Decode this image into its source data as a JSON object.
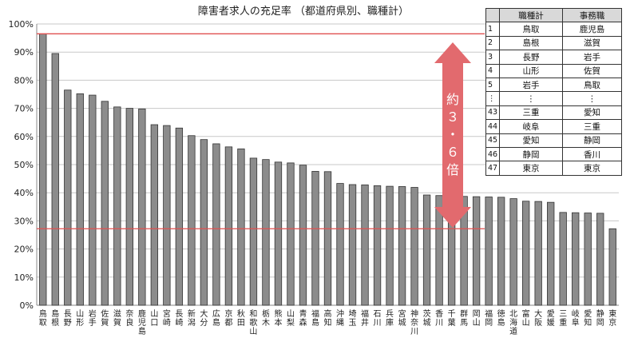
{
  "chart_data": {
    "type": "bar",
    "title": "障害者求人の充足率 （都道府県別、職種計）",
    "ylim": [
      0,
      100
    ],
    "y_ticks": [
      "0%",
      "10%",
      "20%",
      "30%",
      "40%",
      "50%",
      "60%",
      "70%",
      "80%",
      "90%",
      "100%"
    ],
    "grid": true,
    "categories": [
      "鳥取",
      "島根",
      "長野",
      "山形",
      "岩手",
      "佐賀",
      "滋賀",
      "奈良",
      "鹿児島",
      "山口",
      "宮崎",
      "長崎",
      "新潟",
      "大分",
      "広島",
      "京都",
      "秋田",
      "和歌山",
      "栃木",
      "熊本",
      "山梨",
      "青森",
      "福島",
      "高知",
      "沖縄",
      "埼玉",
      "福井",
      "石川",
      "兵庫",
      "宮城",
      "神奈川",
      "茨城",
      "香川",
      "千葉",
      "群馬",
      "岡山",
      "福岡",
      "徳島",
      "北海道",
      "富山",
      "大阪",
      "愛媛",
      "三重",
      "岐阜",
      "愛知",
      "静岡",
      "東京"
    ],
    "values": [
      96.5,
      89.5,
      76.5,
      75.2,
      74.7,
      72.5,
      70.5,
      70.0,
      69.8,
      64.2,
      63.9,
      63.0,
      60.3,
      58.9,
      57.4,
      56.3,
      55.6,
      52.3,
      51.8,
      50.9,
      50.6,
      49.8,
      47.6,
      47.5,
      43.3,
      42.9,
      42.8,
      42.5,
      42.3,
      42.2,
      41.9,
      39.2,
      39.0,
      38.8,
      38.7,
      38.6,
      38.5,
      38.4,
      37.9,
      37.0,
      36.9,
      36.6,
      33.0,
      32.9,
      32.8,
      32.7,
      27.2
    ],
    "reference_lines": [
      96.5,
      27.2
    ],
    "bar_color": "#8c8c8c",
    "reference_color": "#e05050",
    "arrow_color": "#e26a6e",
    "arrow_label": "約３・６倍"
  },
  "rank_table": {
    "headers": [
      "",
      "職種計",
      "事務職"
    ],
    "rows": [
      [
        "1",
        "鳥取",
        "鹿児島"
      ],
      [
        "2",
        "島根",
        "滋賀"
      ],
      [
        "3",
        "長野",
        "岩手"
      ],
      [
        "4",
        "山形",
        "佐賀"
      ],
      [
        "5",
        "岩手",
        "鳥取"
      ],
      [
        "⋮",
        "⋮",
        "⋮"
      ],
      [
        "43",
        "三重",
        "愛知"
      ],
      [
        "44",
        "岐阜",
        "三重"
      ],
      [
        "45",
        "愛知",
        "静岡"
      ],
      [
        "46",
        "静岡",
        "香川"
      ],
      [
        "47",
        "東京",
        "東京"
      ]
    ]
  }
}
